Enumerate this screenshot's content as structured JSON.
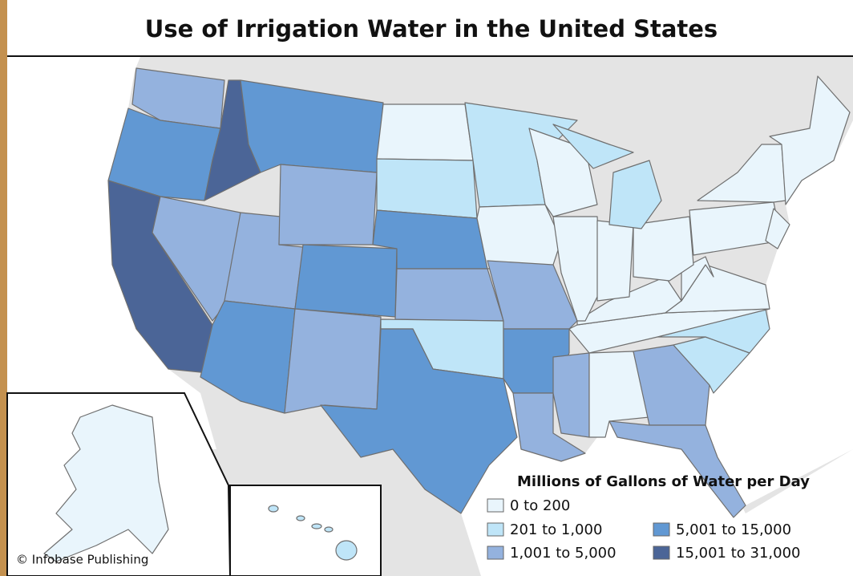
{
  "title": "Use of Irrigation Water in the United States",
  "legend": {
    "title": "Millions of Gallons of Water per Day",
    "items": [
      {
        "label": "0 to 200",
        "color": "#e9f5fc"
      },
      {
        "label": "201 to 1,000",
        "color": "#bfe5f8"
      },
      {
        "label": "1,001 to 5,000",
        "color": "#94b2de"
      },
      {
        "label": "5,001 to 15,000",
        "color": "#6198d3"
      },
      {
        "label": "15,001 to 31,000",
        "color": "#4b6597"
      }
    ]
  },
  "credit": "© Infobase Publishing"
}
